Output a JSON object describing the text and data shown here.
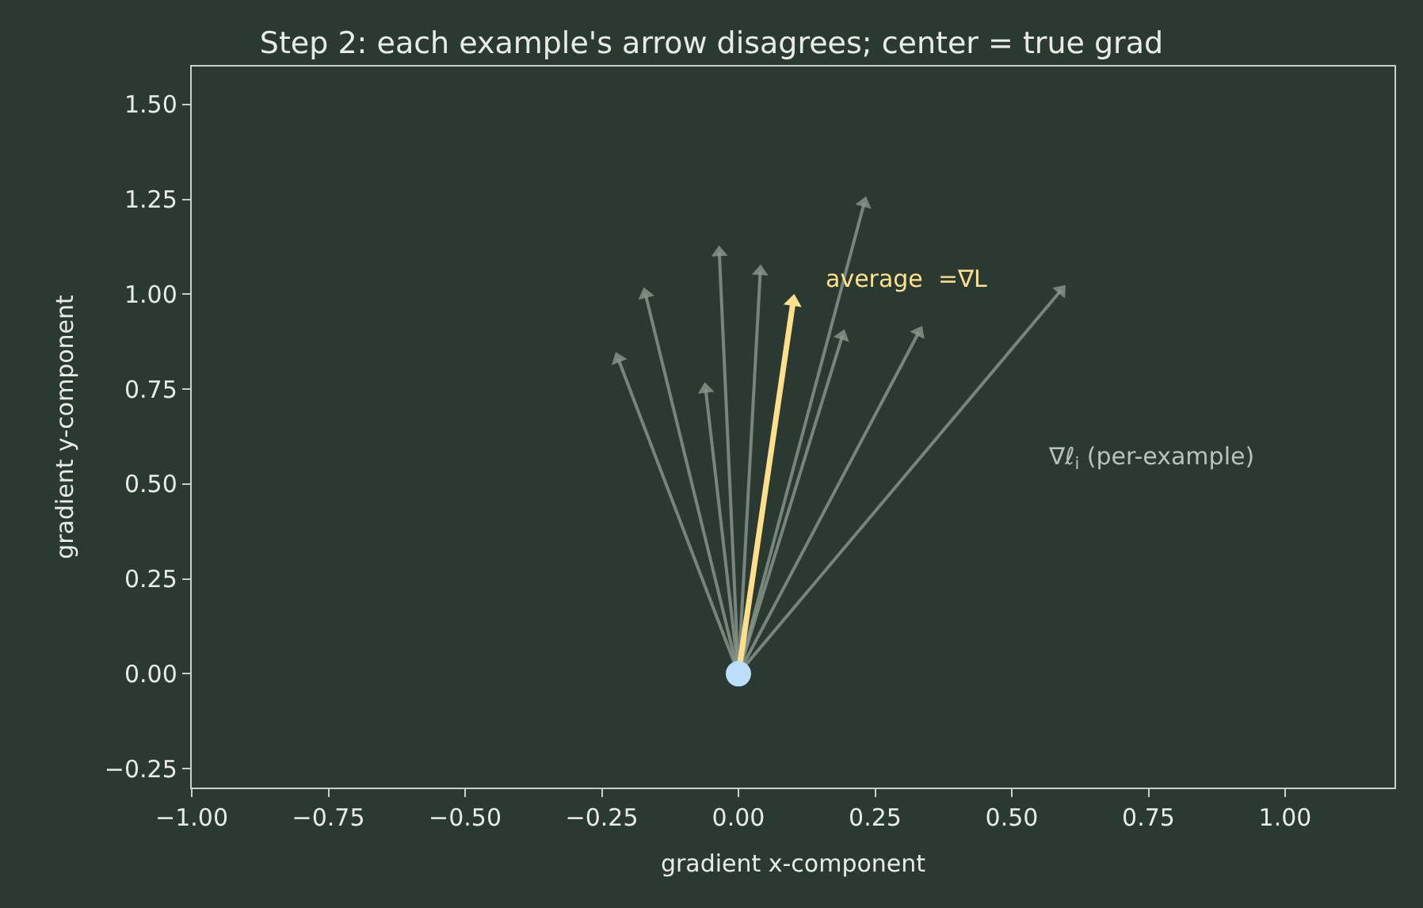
{
  "chart_data": {
    "type": "line",
    "title": "Step 2: each example's arrow disagrees; center = true grad",
    "xlabel": "gradient x-component",
    "ylabel": "gradient y-component",
    "xlim": [
      -1.0,
      1.2
    ],
    "ylim": [
      -0.3,
      1.6
    ],
    "xticks": [
      {
        "value": -1.0,
        "label": "−1.00"
      },
      {
        "value": -0.75,
        "label": "−0.75"
      },
      {
        "value": -0.5,
        "label": "−0.50"
      },
      {
        "value": -0.25,
        "label": "−0.25"
      },
      {
        "value": 0,
        "label": "0.00"
      },
      {
        "value": 0.25,
        "label": "0.25"
      },
      {
        "value": 0.5,
        "label": "0.50"
      },
      {
        "value": 0.75,
        "label": "0.75"
      },
      {
        "value": 1.0,
        "label": "1.00"
      }
    ],
    "yticks": [
      {
        "value": -0.25,
        "label": "−0.25"
      },
      {
        "value": 0,
        "label": "0.00"
      },
      {
        "value": 0.25,
        "label": "0.25"
      },
      {
        "value": 0.5,
        "label": "0.50"
      },
      {
        "value": 0.75,
        "label": "0.75"
      },
      {
        "value": 1.0,
        "label": "1.00"
      },
      {
        "value": 1.25,
        "label": "1.25"
      },
      {
        "value": 1.5,
        "label": "1.50"
      }
    ],
    "grid": false,
    "series": [
      {
        "type": "line",
        "color": "#8a9a8c",
        "marker": "triangle",
        "x": [
          0,
          -0.22
        ],
        "values": [
          0,
          0.83
        ]
      },
      {
        "type": "line",
        "color": "#8a9a8c",
        "marker": "triangle",
        "x": [
          0,
          -0.17
        ],
        "values": [
          0,
          1.0
        ]
      },
      {
        "type": "line",
        "color": "#8a9a8c",
        "marker": "triangle",
        "x": [
          0,
          -0.06
        ],
        "values": [
          0,
          0.75
        ]
      },
      {
        "type": "line",
        "color": "#8a9a8c",
        "marker": "triangle",
        "x": [
          0,
          -0.035
        ],
        "values": [
          0,
          1.11
        ]
      },
      {
        "type": "line",
        "color": "#8a9a8c",
        "marker": "triangle",
        "x": [
          0,
          0.04
        ],
        "values": [
          0,
          1.06
        ]
      },
      {
        "type": "line",
        "color": "#8a9a8c",
        "marker": "triangle",
        "x": [
          0,
          0.23
        ],
        "values": [
          0,
          1.24
        ]
      },
      {
        "type": "line",
        "color": "#8a9a8c",
        "marker": "triangle",
        "x": [
          0,
          0.19
        ],
        "values": [
          0,
          0.89
        ]
      },
      {
        "type": "line",
        "color": "#8a9a8c",
        "marker": "triangle",
        "x": [
          0,
          0.33
        ],
        "values": [
          0,
          0.9
        ]
      },
      {
        "type": "line",
        "color": "#8a9a8c",
        "marker": "triangle",
        "x": [
          0,
          0.59
        ],
        "values": [
          0,
          1.01
        ]
      },
      {
        "color": "#ffe08a",
        "marker": "triangle",
        "x": [
          0,
          0.1
        ],
        "values": [
          0,
          0.98
        ]
      },
      {
        "type": "scatter",
        "color": "#bbdefb",
        "marker": "circle",
        "x": [
          0
        ],
        "values": [
          0
        ]
      }
    ],
    "annotations": [
      "average  =∇L",
      "∇ℓ$_{i}$ (per-example)"
    ]
  }
}
